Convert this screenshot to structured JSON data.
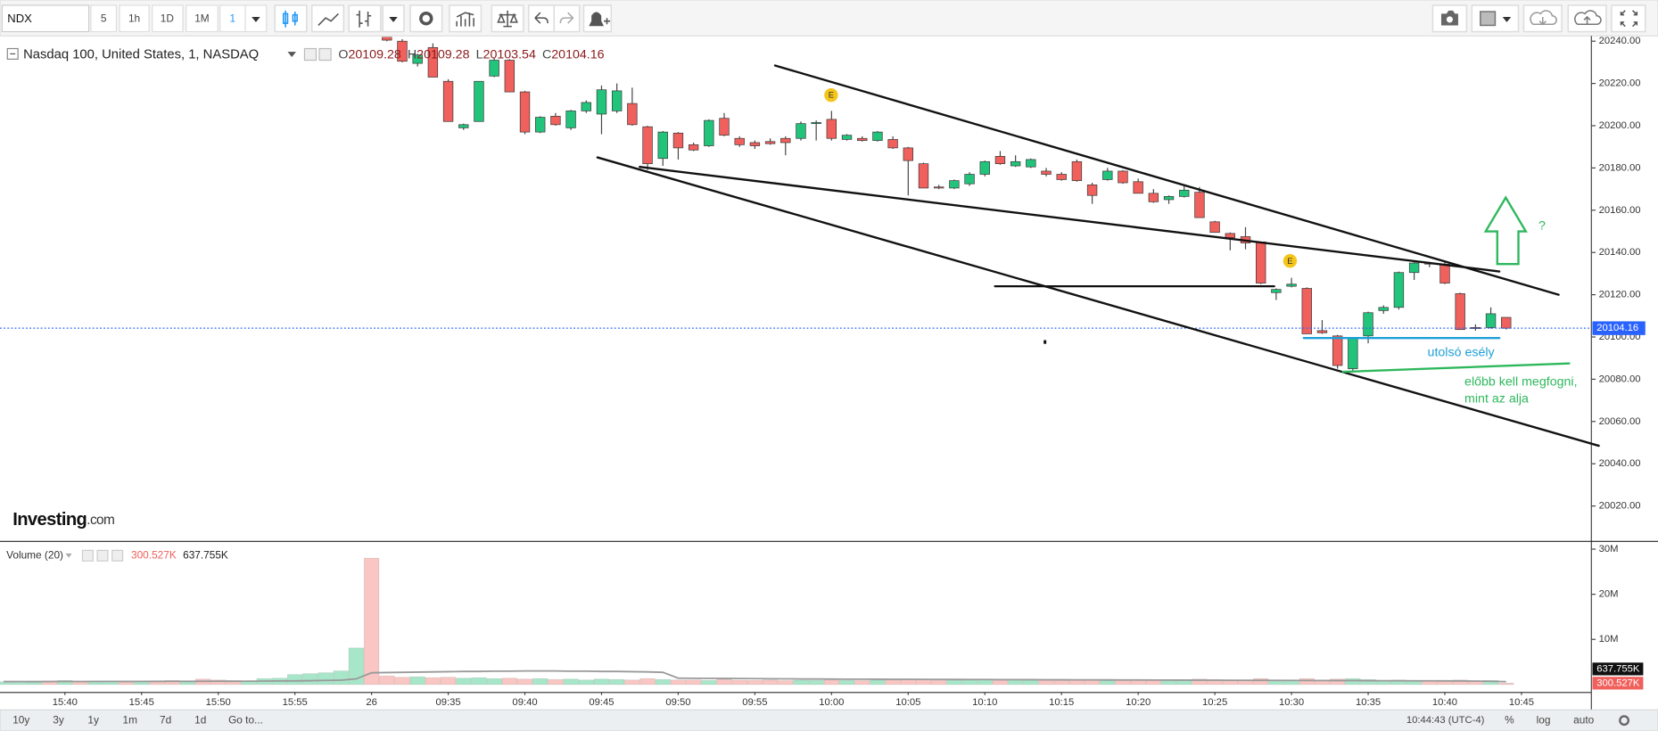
{
  "toolbar": {
    "symbol": "NDX",
    "intervals": [
      "5",
      "1h",
      "1D",
      "1M",
      "1"
    ]
  },
  "bottom_bar": {
    "ranges": [
      "10y",
      "3y",
      "1y",
      "1m",
      "7d",
      "1d"
    ],
    "goto": "Go to...",
    "clock": "10:44:43 (UTC-4)",
    "options": [
      "%",
      "log",
      "auto"
    ]
  },
  "chart_data": {
    "type": "candlestick",
    "title": "Nasdaq 100, United States, 1, NASDAQ",
    "ohlc_prefixes": [
      "O",
      "H",
      "L",
      "C"
    ],
    "x": [
      null,
      null,
      null,
      null,
      "15:40",
      null,
      null,
      null,
      null,
      "15:45",
      null,
      null,
      null,
      null,
      "15:50",
      null,
      null,
      null,
      null,
      "15:55",
      null,
      null,
      null,
      null,
      "26",
      null,
      null,
      null,
      null,
      "09:35",
      null,
      null,
      null,
      null,
      "09:40",
      null,
      null,
      null,
      null,
      "09:45",
      null,
      null,
      null,
      null,
      "09:50",
      null,
      null,
      null,
      null,
      "09:55",
      null,
      null,
      null,
      null,
      "10:00",
      null,
      null,
      null,
      null,
      "10:05",
      null,
      null,
      null,
      null,
      "10:10",
      null,
      null,
      null,
      null,
      "10:15",
      null,
      null,
      null,
      null,
      "10:20",
      null,
      null,
      null,
      null,
      "10:25",
      null,
      null,
      null,
      null,
      "10:30",
      null,
      null,
      null,
      null,
      "10:35",
      null,
      null,
      null,
      null,
      "10:40",
      null,
      null,
      null,
      null,
      "10:45"
    ],
    "open": [
      null,
      null,
      null,
      null,
      null,
      null,
      null,
      null,
      null,
      null,
      null,
      null,
      null,
      null,
      null,
      null,
      null,
      null,
      null,
      null,
      null,
      null,
      null,
      null,
      null,
      20242,
      20240,
      20229.5,
      20237,
      20221,
      20199,
      20202,
      20223.5,
      20231,
      20216,
      20197,
      20204.5,
      20199,
      20207,
      20205.5,
      20207,
      20210.5,
      20199.5,
      20184.5,
      20196.5,
      20191,
      20190.5,
      20203.5,
      20194,
      20192,
      20192.5,
      20194,
      20194,
      20201,
      20203,
      20193.5,
      20194,
      20193,
      20193.5,
      20189.5,
      20182,
      20171,
      20170.5,
      20172.5,
      20177,
      20185.5,
      20181,
      20180.5,
      20178.5,
      20177,
      20183,
      20172,
      20174.5,
      20178.5,
      20173.5,
      20168,
      20165,
      20166.5,
      20168.5,
      20154.5,
      20149,
      20147.5,
      20145,
      20121,
      20124,
      20123,
      20103,
      20100.5,
      20085,
      20100.5,
      20112.5,
      20114,
      20130.5,
      20135,
      20134.5,
      20120.5,
      20104.5,
      20104.5,
      20109.28,
      null
    ],
    "high": [
      null,
      null,
      null,
      null,
      null,
      null,
      null,
      null,
      null,
      null,
      null,
      null,
      null,
      null,
      null,
      null,
      null,
      null,
      null,
      null,
      null,
      null,
      null,
      null,
      null,
      20242,
      20241,
      20234,
      20239,
      20222,
      20201,
      20221,
      20232,
      20231.5,
      20216.5,
      20204.5,
      20206,
      20207.5,
      20212,
      20219,
      20220,
      20218,
      20200,
      20197.5,
      20197,
      20192,
      20203,
      20206,
      20195,
      20193,
      20194,
      20195,
      20202,
      20202.5,
      20207,
      20196,
      20195,
      20197.5,
      20195,
      20190,
      20182.5,
      20172,
      20174.5,
      20178,
      20183.5,
      20188,
      20186,
      20184.5,
      20180,
      20178,
      20184,
      20173,
      20180,
      20179,
      20175,
      20170,
      20167,
      20172,
      20171,
      20155,
      20149.5,
      20152,
      20145,
      20123,
      20128,
      20123.5,
      20108,
      20101,
      20099.5,
      20112,
      20115,
      20131,
      20135.5,
      20135.5,
      20136,
      20121,
      20106,
      20114,
      20109.28,
      null
    ],
    "low": [
      null,
      null,
      null,
      null,
      null,
      null,
      null,
      null,
      null,
      null,
      null,
      null,
      null,
      null,
      null,
      null,
      null,
      null,
      null,
      null,
      null,
      null,
      null,
      null,
      null,
      20240,
      20230,
      20228,
      20223,
      20202,
      20198,
      20202,
      20223,
      20216,
      20196,
      20196.5,
      20200,
      20198,
      20206,
      20196,
      20206,
      20200,
      20179,
      20181,
      20184,
      20188,
      20190,
      20195,
      20190,
      20189,
      20191,
      20186,
      20193,
      20193,
      20193,
      20193,
      20192.5,
      20192.5,
      20189,
      20167,
      20170.5,
      20170,
      20170,
      20171.5,
      20176,
      20181.5,
      20180.5,
      20180,
      20176,
      20174,
      20173.5,
      20163,
      20174,
      20172.5,
      20168,
      20163.5,
      20163,
      20166,
      20156.5,
      20149.5,
      20141,
      20141.5,
      20125,
      20117.5,
      20123.5,
      20101.5,
      20101.5,
      20085,
      20084,
      20097,
      20111,
      20113,
      20127,
      20133,
      20125,
      20103.5,
      20103,
      20104,
      20103.54,
      null
    ],
    "close": [
      null,
      null,
      null,
      null,
      null,
      null,
      null,
      null,
      null,
      null,
      null,
      null,
      null,
      null,
      null,
      null,
      null,
      null,
      null,
      null,
      null,
      null,
      null,
      null,
      null,
      20240.5,
      20230.5,
      20233.5,
      20223,
      20202,
      20200.5,
      20221,
      20231,
      20216,
      20197,
      20204,
      20200.5,
      20207,
      20211,
      20217,
      20216.5,
      20200.5,
      20182,
      20197,
      20189.5,
      20188.5,
      20202.5,
      20195.5,
      20191,
      20190.5,
      20191.5,
      20192,
      20201,
      20201.5,
      20194,
      20195.5,
      20193,
      20197,
      20189.5,
      20183.5,
      20170.5,
      20170.5,
      20174,
      20177,
      20183,
      20182,
      20183,
      20184,
      20177,
      20174.5,
      20174,
      20167,
      20178.5,
      20173,
      20168,
      20164,
      20166.5,
      20169.5,
      20156.5,
      20149.5,
      20147,
      20144.5,
      20125.5,
      20122.5,
      20125,
      20101.5,
      20102,
      20086.5,
      20099.5,
      20111.5,
      20114,
      20130.5,
      20135,
      20134.5,
      20125.5,
      20103.5,
      20104,
      20111,
      20104.16,
      null
    ],
    "up_color": "#22c47c",
    "down_color": "#f0605c",
    "last_price_color": "#2962ff",
    "ylim": [
      20003.5,
      20242
    ],
    "yticks": [
      {
        "value": 20020,
        "label": "20020.00"
      },
      {
        "value": 20040,
        "label": "20040.00"
      },
      {
        "value": 20060,
        "label": "20060.00"
      },
      {
        "value": 20080,
        "label": "20080.00"
      },
      {
        "value": 20100,
        "label": "20100.00"
      },
      {
        "value": 20120,
        "label": "20120.00"
      },
      {
        "value": 20140,
        "label": "20140.00"
      },
      {
        "value": 20160,
        "label": "20160.00"
      },
      {
        "value": 20180,
        "label": "20180.00"
      },
      {
        "value": 20200,
        "label": "20200.00"
      },
      {
        "value": 20220,
        "label": "20220.00"
      },
      {
        "value": 20240,
        "label": "20240.00"
      }
    ],
    "grid": false,
    "logo": {
      "brand": "Investing",
      "suffix": ".com"
    },
    "annotations": {
      "events": [
        "E",
        "E"
      ],
      "question": "?",
      "last_chance": "utolsó esély",
      "note": [
        "előbb kell megfogni,",
        "mint az alja"
      ]
    },
    "volume": {
      "title": "Volume (20)",
      "values": [
        600000,
        700000,
        500000,
        800000,
        900000,
        700000,
        600000,
        800000,
        500000,
        700000,
        600000,
        900000,
        700000,
        1200000,
        1000000,
        900000,
        800000,
        1300000,
        1400000,
        2200000,
        2400000,
        2600000,
        3000000,
        8100000,
        28000000,
        1900000,
        1600000,
        1700000,
        1500000,
        1600000,
        1400000,
        1500000,
        1300000,
        1400000,
        1200000,
        1300000,
        1100000,
        1200000,
        1000000,
        1200000,
        1100000,
        1000000,
        1300000,
        1100000,
        1000000,
        1000000,
        900000,
        1100000,
        950000,
        900000,
        1000000,
        850000,
        950000,
        900000,
        1000000,
        900000,
        850000,
        950000,
        1000000,
        1100000,
        1200000,
        900000,
        950000,
        1000000,
        1050000,
        900000,
        950000,
        1000000,
        900000,
        850000,
        950000,
        1000000,
        900000,
        950000,
        1000000,
        1100000,
        900000,
        950000,
        1200000,
        1100000,
        1000000,
        1000000,
        1300000,
        1000000,
        900000,
        1300000,
        1000000,
        1200000,
        1300000,
        1100000,
        900000,
        1000000,
        900000,
        800000,
        900000,
        1000000,
        800000,
        900000,
        300527,
        null
      ],
      "colors": [
        "#a8e6c9",
        "#a8e6c9",
        "#a8e6c9",
        "#f9c6c3",
        "#a8e6c9",
        "#f9c6c3",
        "#a8e6c9",
        "#a8e6c9",
        "#f9c6c3",
        "#a8e6c9",
        "#f9c6c3",
        "#f9c6c3",
        "#a8e6c9",
        "#f9c6c3",
        "#f9c6c3",
        "#f9c6c3",
        "#a8e6c9",
        "#a8e6c9",
        "#a8e6c9",
        "#a8e6c9",
        "#a8e6c9",
        "#a8e6c9",
        "#a8e6c9",
        "#a8e6c9",
        "#f9c6c3",
        "#f9c6c3",
        "#f9c6c3",
        "#a8e6c9",
        "#f9c6c3",
        "#f9c6c3",
        "#a8e6c9",
        "#a8e6c9",
        "#a8e6c9",
        "#f9c6c3",
        "#f9c6c3",
        "#a8e6c9",
        "#f9c6c3",
        "#a8e6c9",
        "#a8e6c9",
        "#a8e6c9",
        "#a8e6c9",
        "#f9c6c3",
        "#f9c6c3",
        "#a8e6c9",
        "#f9c6c3",
        "#f9c6c3",
        "#a8e6c9",
        "#f9c6c3",
        "#f9c6c3",
        "#f9c6c3",
        "#f9c6c3",
        "#f9c6c3",
        "#a8e6c9",
        "#a8e6c9",
        "#f9c6c3",
        "#a8e6c9",
        "#f9c6c3",
        "#a8e6c9",
        "#f9c6c3",
        "#f9c6c3",
        "#f9c6c3",
        "#f9c6c3",
        "#a8e6c9",
        "#a8e6c9",
        "#a8e6c9",
        "#f9c6c3",
        "#a8e6c9",
        "#a8e6c9",
        "#f9c6c3",
        "#f9c6c3",
        "#f9c6c3",
        "#f9c6c3",
        "#a8e6c9",
        "#f9c6c3",
        "#f9c6c3",
        "#f9c6c3",
        "#a8e6c9",
        "#a8e6c9",
        "#f9c6c3",
        "#f9c6c3",
        "#f9c6c3",
        "#f9c6c3",
        "#f9c6c3",
        "#a8e6c9",
        "#a8e6c9",
        "#f9c6c3",
        "#f9c6c3",
        "#f9c6c3",
        "#a8e6c9",
        "#a8e6c9",
        "#a8e6c9",
        "#a8e6c9",
        "#a8e6c9",
        "#f9c6c3",
        "#f9c6c3",
        "#f9c6c3",
        "#f9c6c3",
        "#a8e6c9",
        "#f9c6c3",
        null
      ],
      "ma": [
        650000,
        660000,
        650000,
        670000,
        680000,
        670000,
        680000,
        690000,
        680000,
        690000,
        700000,
        710000,
        700000,
        720000,
        730000,
        720000,
        740000,
        760000,
        780000,
        800000,
        850000,
        900000,
        950000,
        1250000,
        2600000,
        2650000,
        2700000,
        2750000,
        2800000,
        2850000,
        2900000,
        2900000,
        2950000,
        2950000,
        3000000,
        3000000,
        3000000,
        2950000,
        2950000,
        2900000,
        2900000,
        2850000,
        2800000,
        2700000,
        1400000,
        1380000,
        1360000,
        1340000,
        1320000,
        1300000,
        1280000,
        1260000,
        1240000,
        1220000,
        1200000,
        1190000,
        1180000,
        1170000,
        1160000,
        1150000,
        1140000,
        1130000,
        1120000,
        1110000,
        1100000,
        1090000,
        1080000,
        1070000,
        1060000,
        1050000,
        1040000,
        1030000,
        1020000,
        1010000,
        1000000,
        990000,
        980000,
        970000,
        960000,
        950000,
        940000,
        930000,
        920000,
        910000,
        900000,
        890000,
        880000,
        870000,
        860000,
        850000,
        840000,
        830000,
        820000,
        810000,
        800000,
        780000,
        760000,
        720000,
        637755,
        null
      ],
      "ma_color": "#9a9a9a",
      "last_value_label": "300.527K",
      "last_ma_label": "637.755K",
      "ylim": [
        -1640000,
        31600000
      ],
      "yticks": [
        {
          "value": 10000000,
          "label": "10M"
        },
        {
          "value": 20000000,
          "label": "20M"
        },
        {
          "value": 30000000,
          "label": "30M"
        }
      ]
    }
  }
}
